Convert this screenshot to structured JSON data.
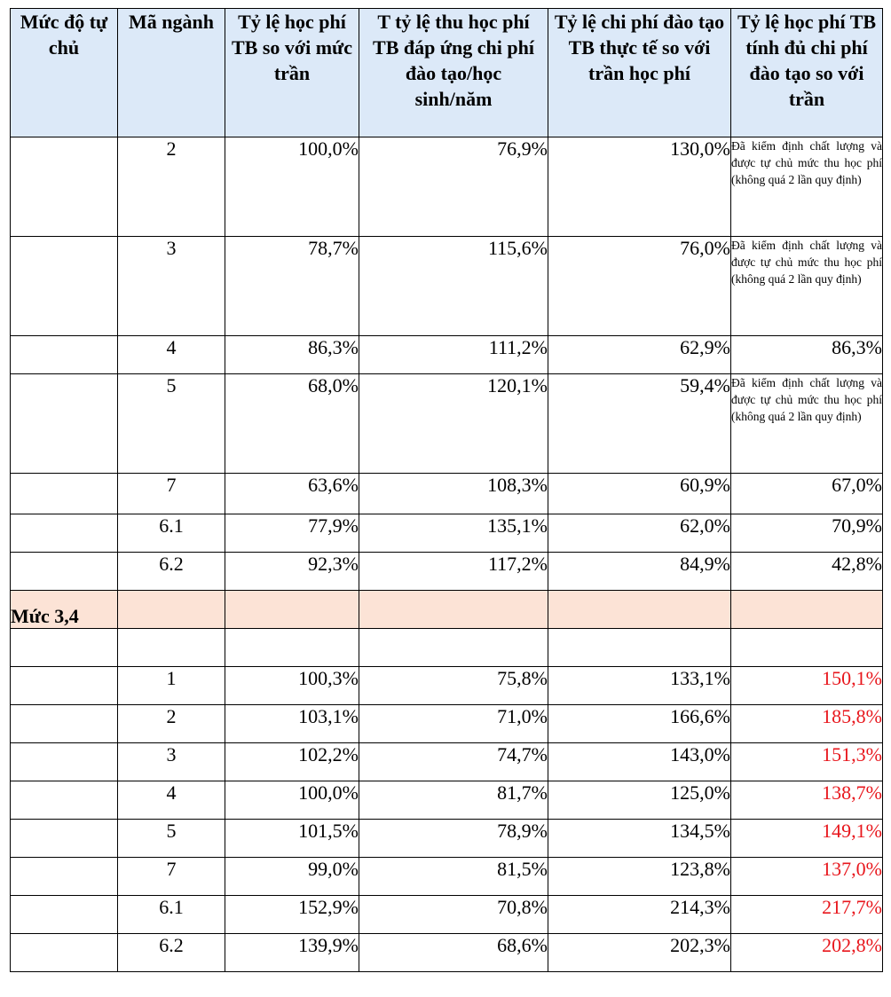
{
  "headers": [
    "Mức độ tự chủ",
    "Mã ngành",
    "Tỷ lệ học phí TB so với mức trần",
    "T tỷ lệ thu học phí TB đáp ứng chi phí đào tạo/học sinh/năm",
    "Tỷ lệ chi phí đào tạo TB thực tế so với trần học phí",
    "Tỷ lệ học phí TB tính đủ chi phí đào tạo so với trần"
  ],
  "note_text": "Đã kiểm định chất lượng và được tự chủ mức thu học phí (không quá 2 lần quy định)",
  "group1_rows": [
    {
      "code": "2",
      "fee_ratio": "100,0%",
      "cost_coverage": "76,9%",
      "cost_ratio": "130,0%",
      "full_cost": null
    },
    {
      "code": "3",
      "fee_ratio": "78,7%",
      "cost_coverage": "115,6%",
      "cost_ratio": "76,0%",
      "full_cost": null
    },
    {
      "code": "4",
      "fee_ratio": "86,3%",
      "cost_coverage": "111,2%",
      "cost_ratio": "62,9%",
      "full_cost": "86,3%"
    },
    {
      "code": "5",
      "fee_ratio": "68,0%",
      "cost_coverage": "120,1%",
      "cost_ratio": "59,4%",
      "full_cost": null
    },
    {
      "code": "7",
      "fee_ratio": "63,6%",
      "cost_coverage": "108,3%",
      "cost_ratio": "60,9%",
      "full_cost": "67,0%"
    },
    {
      "code": "6.1",
      "fee_ratio": "77,9%",
      "cost_coverage": "135,1%",
      "cost_ratio": "62,0%",
      "full_cost": "70,9%"
    },
    {
      "code": "6.2",
      "fee_ratio": "92,3%",
      "cost_coverage": "117,2%",
      "cost_ratio": "84,9%",
      "full_cost": "42,8%"
    }
  ],
  "level_label": "Mức 3,4",
  "group2_rows": [
    {
      "code": "1",
      "fee_ratio": "100,3%",
      "cost_coverage": "75,8%",
      "cost_ratio": "133,1%",
      "full_cost": "150,1%"
    },
    {
      "code": "2",
      "fee_ratio": "103,1%",
      "cost_coverage": "71,0%",
      "cost_ratio": "166,6%",
      "full_cost": "185,8%"
    },
    {
      "code": "3",
      "fee_ratio": "102,2%",
      "cost_coverage": "74,7%",
      "cost_ratio": "143,0%",
      "full_cost": "151,3%"
    },
    {
      "code": "4",
      "fee_ratio": "100,0%",
      "cost_coverage": "81,7%",
      "cost_ratio": "125,0%",
      "full_cost": "138,7%"
    },
    {
      "code": "5",
      "fee_ratio": "101,5%",
      "cost_coverage": "78,9%",
      "cost_ratio": "134,5%",
      "full_cost": "149,1%"
    },
    {
      "code": "7",
      "fee_ratio": "99,0%",
      "cost_coverage": "81,5%",
      "cost_ratio": "123,8%",
      "full_cost": "137,0%"
    },
    {
      "code": "6.1",
      "fee_ratio": "152,9%",
      "cost_coverage": "70,8%",
      "cost_ratio": "214,3%",
      "full_cost": "217,7%"
    },
    {
      "code": "6.2",
      "fee_ratio": "139,9%",
      "cost_coverage": "68,6%",
      "cost_ratio": "202,3%",
      "full_cost": "202,8%"
    }
  ],
  "colors": {
    "header_bg": "#dce9f8",
    "level_row_bg": "#fce3d6",
    "highlight_text": "#e8161c"
  }
}
